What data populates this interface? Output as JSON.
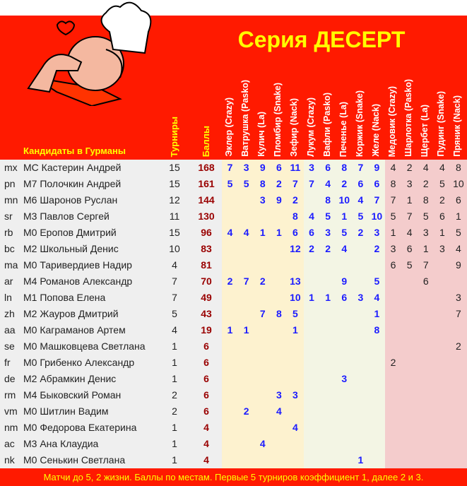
{
  "header": {
    "title": "Серия ДЕСЕРТ",
    "candidates_label": "Кандидаты в  Гурманы",
    "col_tournaments": "Турниры",
    "col_points": "Баллы",
    "tournaments": [
      "Эклер (Crazy)",
      "Ватрушка (Pasko)",
      "Кулич (La)",
      "Пломбир (Snake)",
      "Зефир (Nack)",
      "Лукум (Crazy)",
      "Вафли (Pasko)",
      "Печенье (La)",
      "Коржик (Snake)",
      "Желе (Nack)",
      "Медовик (Crazy)",
      "Шарлотка (Pasko)",
      "Щербет (La)",
      "Пудинг (Snake)",
      "Пряник (Nack)"
    ]
  },
  "rows": [
    {
      "code": "mx",
      "name": "МС Кастерин Андрей",
      "tournaments": 15,
      "points": 168,
      "results": [
        7,
        3,
        9,
        6,
        11,
        3,
        6,
        8,
        7,
        9,
        4,
        2,
        4,
        4,
        8
      ]
    },
    {
      "code": "pn",
      "name": "M7 Полочкин Андрей",
      "tournaments": 15,
      "points": 161,
      "results": [
        5,
        5,
        8,
        2,
        7,
        7,
        4,
        2,
        6,
        6,
        8,
        3,
        2,
        5,
        10
      ]
    },
    {
      "code": "mn",
      "name": "M6 Шаронов Руслан",
      "tournaments": 12,
      "points": 144,
      "results": [
        null,
        null,
        3,
        9,
        2,
        null,
        8,
        10,
        4,
        7,
        7,
        1,
        8,
        2,
        6
      ]
    },
    {
      "code": "sr",
      "name": "M3 Павлов Сергей",
      "tournaments": 11,
      "points": 130,
      "results": [
        null,
        null,
        null,
        null,
        8,
        4,
        5,
        1,
        5,
        10,
        5,
        7,
        5,
        6,
        1
      ]
    },
    {
      "code": "rb",
      "name": "M0 Еропов Дмитрий",
      "tournaments": 15,
      "points": 96,
      "results": [
        4,
        4,
        1,
        1,
        6,
        6,
        3,
        5,
        2,
        3,
        1,
        4,
        3,
        1,
        5
      ]
    },
    {
      "code": "bc",
      "name": "M2 Школьный Денис",
      "tournaments": 10,
      "points": 83,
      "results": [
        null,
        null,
        null,
        null,
        12,
        2,
        2,
        4,
        null,
        2,
        3,
        6,
        1,
        3,
        4
      ]
    },
    {
      "code": "ma",
      "name": "M0 Таривердиев Надир",
      "tournaments": 4,
      "points": 81,
      "results": [
        null,
        null,
        null,
        null,
        null,
        null,
        null,
        null,
        null,
        null,
        6,
        5,
        7,
        null,
        9
      ]
    },
    {
      "code": "ar",
      "name": "M4 Романов Александр",
      "tournaments": 7,
      "points": 70,
      "results": [
        2,
        7,
        2,
        null,
        13,
        null,
        null,
        9,
        null,
        5,
        null,
        null,
        6,
        null,
        null
      ]
    },
    {
      "code": "ln",
      "name": "M1 Попова Елена",
      "tournaments": 7,
      "points": 49,
      "results": [
        null,
        null,
        null,
        null,
        10,
        1,
        1,
        6,
        3,
        4,
        null,
        null,
        null,
        null,
        3
      ]
    },
    {
      "code": "zh",
      "name": "M2 Жауров Дмитрий",
      "tournaments": 5,
      "points": 43,
      "results": [
        null,
        null,
        7,
        8,
        5,
        null,
        null,
        null,
        null,
        1,
        null,
        null,
        null,
        null,
        7
      ]
    },
    {
      "code": "aa",
      "name": "M0 Каграманов Артем",
      "tournaments": 4,
      "points": 19,
      "results": [
        1,
        1,
        null,
        null,
        1,
        null,
        null,
        null,
        null,
        8,
        null,
        null,
        null,
        null,
        null
      ]
    },
    {
      "code": "se",
      "name": "M0 Машковцева Светлана",
      "tournaments": 1,
      "points": 6,
      "results": [
        null,
        null,
        null,
        null,
        null,
        null,
        null,
        null,
        null,
        null,
        null,
        null,
        null,
        null,
        2
      ]
    },
    {
      "code": "fr",
      "name": "M0 Грибенко Александр",
      "tournaments": 1,
      "points": 6,
      "results": [
        null,
        null,
        null,
        null,
        null,
        null,
        null,
        null,
        null,
        null,
        2,
        null,
        null,
        null,
        null
      ]
    },
    {
      "code": "de",
      "name": "M2 Абрамкин Денис",
      "tournaments": 1,
      "points": 6,
      "results": [
        null,
        null,
        null,
        null,
        null,
        null,
        null,
        3,
        null,
        null,
        null,
        null,
        null,
        null,
        null
      ]
    },
    {
      "code": "rm",
      "name": "M4 Быковский Роман",
      "tournaments": 2,
      "points": 6,
      "results": [
        null,
        null,
        null,
        3,
        3,
        null,
        null,
        null,
        null,
        null,
        null,
        null,
        null,
        null,
        null
      ]
    },
    {
      "code": "vm",
      "name": "M0 Шитлин Вадим",
      "tournaments": 2,
      "points": 6,
      "results": [
        null,
        2,
        null,
        4,
        null,
        null,
        null,
        null,
        null,
        null,
        null,
        null,
        null,
        null,
        null
      ]
    },
    {
      "code": "nm",
      "name": "M0 Федорова Екатерина",
      "tournaments": 1,
      "points": 4,
      "results": [
        null,
        null,
        null,
        null,
        4,
        null,
        null,
        null,
        null,
        null,
        null,
        null,
        null,
        null,
        null
      ]
    },
    {
      "code": "ac",
      "name": "M3 Ана Клаудиа",
      "tournaments": 1,
      "points": 4,
      "results": [
        null,
        null,
        4,
        null,
        null,
        null,
        null,
        null,
        null,
        null,
        null,
        null,
        null,
        null,
        null
      ]
    },
    {
      "code": "nk",
      "name": "M0 Сенькин Светлана",
      "tournaments": 1,
      "points": 4,
      "results": [
        null,
        null,
        null,
        null,
        null,
        null,
        null,
        null,
        1,
        null,
        null,
        null,
        null,
        null,
        null
      ]
    }
  ],
  "footer": "Матчи до 5, 2 жизни. Баллы по местам. Первые 5 турниров коэффициент 1, далее 2 и 3."
}
